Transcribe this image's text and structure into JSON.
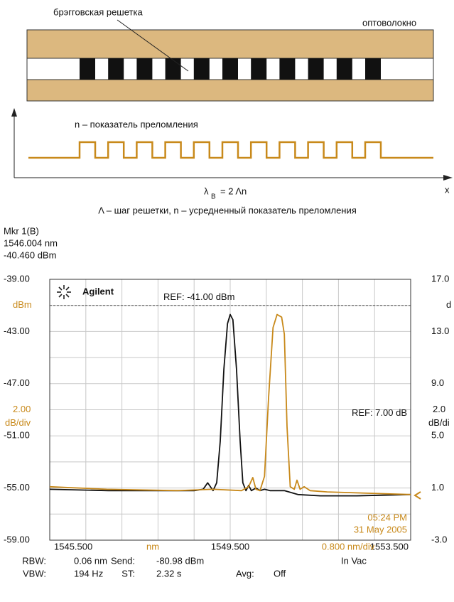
{
  "diagram": {
    "grating_label": "брэгговская решетка",
    "fiber_label": "оптоволокно",
    "index_label": "n – показатель преломления",
    "axis_label": "x",
    "formula": {
      "lambda": "λ",
      "sub": "B",
      "rest": "= 2 Λn"
    },
    "caption": "Λ – шаг решетки, n – усредненный показатель преломления"
  },
  "chart_data": {
    "type": "line",
    "marker": [
      "Mkr 1(B)",
      "1546.004 nm",
      "-40.460 dBm"
    ],
    "brand": "Agilent",
    "xlim": [
      1545.5,
      1553.5
    ],
    "xticks": [
      {
        "value": 1545.5,
        "label": "1545.500"
      },
      {
        "value": 1549.5,
        "label": "1549.500"
      },
      {
        "value": 1553.5,
        "label": "1553.500"
      }
    ],
    "xunit": "nm",
    "xdiv": {
      "value": 0.8,
      "label": "0.800 nm/div"
    },
    "ylim": [
      -59,
      -39
    ],
    "yticks": [
      {
        "value": -39,
        "label": "-39.00"
      },
      {
        "value": -43,
        "label": "-43.00"
      },
      {
        "value": -47,
        "label": "-47.00"
      },
      {
        "value": -51,
        "label": "-51.00"
      },
      {
        "value": -55,
        "label": "-55.00"
      },
      {
        "value": -59,
        "label": "-59.00"
      }
    ],
    "yunit": "dBm",
    "ydiv": {
      "value": 2,
      "label": "2.00"
    },
    "ydiv_unit": "dB/div",
    "y2lim": [
      -3,
      17
    ],
    "y2ticks": [
      {
        "value": 17,
        "label": "17.0"
      },
      {
        "value": 13,
        "label": "13.0"
      },
      {
        "value": 9,
        "label": "9.0"
      },
      {
        "value": 5,
        "label": "5.0"
      },
      {
        "value": 1,
        "label": "1.0"
      },
      {
        "value": -3,
        "label": "-3.0"
      }
    ],
    "y2unit": "d",
    "y2div": {
      "value": 2,
      "label": "2.0"
    },
    "y2div_unit": "dB/di",
    "ref": {
      "value": -41,
      "label": "REF: -41.00 dBm"
    },
    "ref2": {
      "value": 7,
      "label": "REF: 7.00 dB"
    },
    "time": "05:24 PM",
    "date": "31 May 2005",
    "settings": [
      [
        {
          "label": "RBW:",
          "value": "0.06 nm"
        },
        {
          "label": "Send:",
          "value": "-80.98 dBm"
        },
        {
          "label": "In Vac",
          "value": null
        }
      ],
      [
        {
          "label": "VBW:",
          "value": "194 Hz"
        },
        {
          "label": "ST:",
          "value": "2.32 s"
        },
        {
          "label": "Avg:",
          "value": "Off"
        }
      ]
    ],
    "series": [
      {
        "color": "#111111",
        "x": [
          1545.5,
          1546.8,
          1548.3,
          1548.7,
          1548.9,
          1549.0,
          1549.06,
          1549.12,
          1549.2,
          1549.28,
          1549.36,
          1549.44,
          1549.5,
          1549.56,
          1549.64,
          1549.72,
          1549.78,
          1549.85,
          1549.91,
          1549.97,
          1550.07,
          1550.16,
          1550.26,
          1550.38,
          1550.7,
          1551.0,
          1551.5,
          1552.3,
          1553.5
        ],
        "values": [
          -55.1,
          -55.2,
          -55.2,
          -55.2,
          -55.1,
          -54.6,
          -54.9,
          -55.2,
          -54.6,
          -51.4,
          -45.9,
          -42.4,
          -41.7,
          -42.1,
          -45.9,
          -51.4,
          -54.6,
          -55.2,
          -54.8,
          -55.2,
          -55.0,
          -55.2,
          -55.1,
          -55.2,
          -55.2,
          -55.5,
          -55.6,
          -55.6,
          -55.5
        ]
      },
      {
        "color": "#c8891a",
        "x": [
          1545.5,
          1546.76,
          1548.33,
          1549.12,
          1549.75,
          1549.91,
          1550.0,
          1550.07,
          1550.16,
          1550.26,
          1550.35,
          1550.45,
          1550.54,
          1550.64,
          1550.7,
          1550.76,
          1550.83,
          1550.92,
          1550.98,
          1551.05,
          1551.14,
          1551.27,
          1551.65,
          1553.5
        ],
        "values": [
          -54.9,
          -55.1,
          -55.2,
          -55.1,
          -55.2,
          -54.9,
          -54.2,
          -55.1,
          -55.2,
          -54.1,
          -48.1,
          -42.7,
          -41.7,
          -41.9,
          -43.2,
          -50.3,
          -54.9,
          -55.1,
          -54.4,
          -55.1,
          -54.9,
          -55.2,
          -55.3,
          -55.5
        ]
      }
    ]
  }
}
